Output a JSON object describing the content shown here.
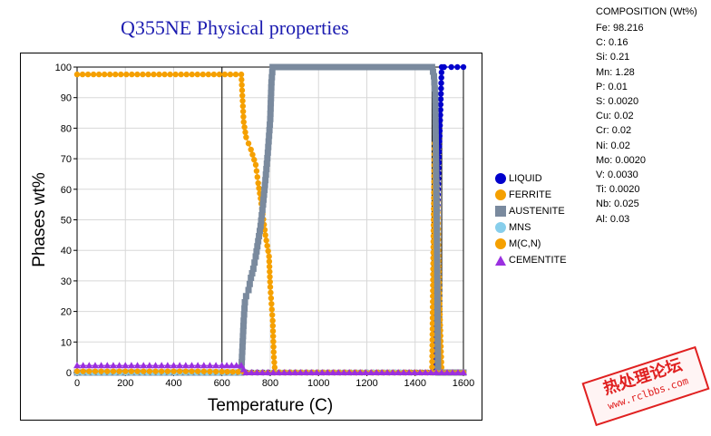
{
  "chart_data": {
    "type": "line",
    "title": "Q355NE  Physical properties",
    "xlabel": "Temperature (C)",
    "ylabel": "Phases wt%",
    "xlim": [
      0,
      1600
    ],
    "ylim": [
      0,
      100
    ],
    "xticks": [
      "0",
      "200",
      "400",
      "600",
      "800",
      "1000",
      "1200",
      "1400",
      "1600"
    ],
    "yticks": [
      "0",
      "10",
      "20",
      "30",
      "40",
      "50",
      "60",
      "70",
      "80",
      "90",
      "100"
    ],
    "grid": true,
    "legend_position": "right",
    "reference_lines_x": [
      600,
      1470,
      1510
    ],
    "series": [
      {
        "name": "LIQUID",
        "color": "#0000cc",
        "marker": "circle",
        "x": [
          0,
          1475,
          1478,
          1480,
          1483,
          1487,
          1490,
          1495,
          1500,
          1505,
          1510,
          1520,
          1550,
          1600
        ],
        "y": [
          0,
          0,
          3,
          9,
          25,
          28,
          44,
          60,
          74,
          86,
          100,
          100,
          100,
          100
        ]
      },
      {
        "name": "FERRITE",
        "color": "#f5a000",
        "marker": "circle",
        "x": [
          0,
          680,
          690,
          700,
          720,
          740,
          750,
          760,
          780,
          795,
          800,
          810,
          815,
          820,
          1470,
          1480,
          1487,
          1492,
          1495,
          1500,
          1505,
          1510,
          1600
        ],
        "y": [
          97.6,
          97.6,
          82,
          77,
          73,
          68,
          62,
          57,
          45,
          38,
          28,
          17,
          5,
          0,
          0,
          75,
          70,
          56,
          47,
          26,
          12,
          0,
          0
        ]
      },
      {
        "name": "AUSTENITE",
        "color": "#7a8a9e",
        "marker": "square",
        "x": [
          0,
          680,
          690,
          695,
          700,
          710,
          720,
          730,
          740,
          750,
          760,
          770,
          780,
          790,
          800,
          805,
          810,
          815,
          1470,
          1478,
          1483,
          1490,
          1495,
          1600
        ],
        "y": [
          0,
          0,
          17,
          23,
          25,
          27,
          31,
          34,
          38,
          43,
          48,
          55,
          63,
          72,
          83,
          95,
          100,
          100,
          100,
          97,
          91,
          47,
          0,
          0
        ]
      },
      {
        "name": "MNS",
        "color": "#87ceeb",
        "marker": "circle",
        "x": [
          0,
          1190,
          1200,
          1230,
          1260,
          1300,
          1340,
          1350,
          1600
        ],
        "y": [
          0,
          0,
          0.05,
          0.05,
          0.05,
          0.05,
          0.05,
          0,
          0
        ]
      },
      {
        "name": "M(C,N)",
        "color": "#f5a000",
        "marker": "circle",
        "x": [
          0,
          100,
          200,
          300,
          400,
          500,
          600,
          690,
          700,
          1600
        ],
        "y": [
          0.4,
          0.4,
          0.4,
          0.4,
          0.4,
          0.4,
          0.3,
          0.2,
          0,
          0
        ]
      },
      {
        "name": "CEMENTITE",
        "color": "#9a30e0",
        "marker": "triangle",
        "x": [
          0,
          100,
          200,
          300,
          400,
          500,
          600,
          680,
          690,
          700,
          1600
        ],
        "y": [
          2.3,
          2.3,
          2.3,
          2.3,
          2.3,
          2.3,
          2.3,
          2.3,
          1,
          0,
          0
        ]
      }
    ]
  },
  "composition": {
    "title": "COMPOSITION (Wt%)",
    "items": [
      "Fe: 98.216",
      "C: 0.16",
      "Si: 0.21",
      "Mn: 1.28",
      "P: 0.01",
      "S: 0.0020",
      "Cu: 0.02",
      "Cr: 0.02",
      "Ni: 0.02",
      "Mo: 0.0020",
      "V: 0.0030",
      "Ti: 0.0020",
      "Nb: 0.025",
      "Al: 0.03"
    ]
  },
  "watermark": {
    "top": "热处理论坛",
    "bottom": "www.rclbbs.com"
  }
}
